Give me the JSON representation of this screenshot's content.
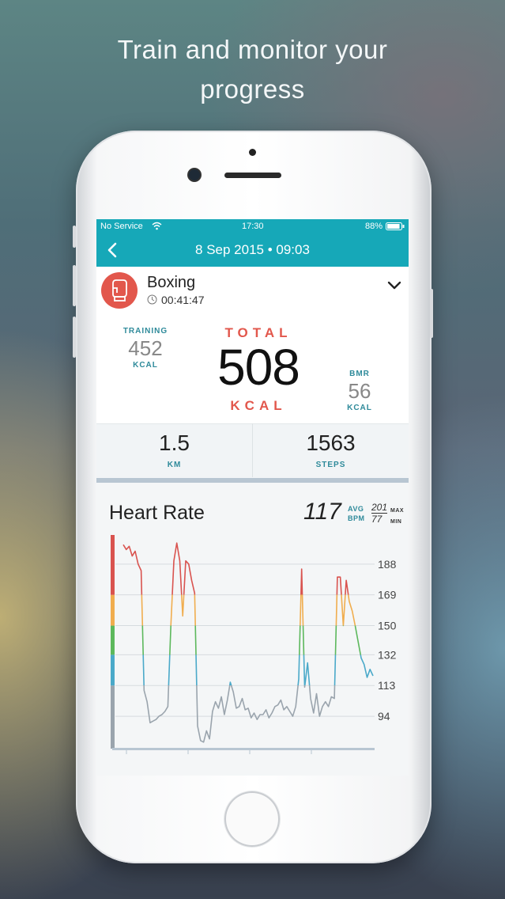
{
  "headline": {
    "line1": "Train and monitor your",
    "line2": "progress"
  },
  "status_bar": {
    "carrier": "No Service",
    "time": "17:30",
    "battery": "88%"
  },
  "nav": {
    "title": "8 Sep 2015 • 09:03",
    "back_icon": "chevron-left-icon"
  },
  "activity": {
    "name": "Boxing",
    "duration": "00:41:47",
    "icon": "boxing-glove-icon",
    "color": "#e2574c"
  },
  "calories": {
    "training_label": "TRAINING",
    "training_value": "452",
    "training_unit": "KCAL",
    "total_label": "TOTAL",
    "total_value": "508",
    "total_unit": "KCAL",
    "bmr_label": "BMR",
    "bmr_value": "56",
    "bmr_unit": "KCAL"
  },
  "stats": {
    "distance_value": "1.5",
    "distance_label": "KM",
    "steps_value": "1563",
    "steps_label": "STEPS"
  },
  "heart_rate": {
    "title": "Heart Rate",
    "avg_value": "117",
    "avg_label_1": "AVG",
    "avg_label_2": "BPM",
    "max_value": "201",
    "max_label": "MAX",
    "min_value": "77",
    "min_label": "MIN"
  },
  "chart_data": {
    "type": "line",
    "yticks": [
      94,
      113,
      132,
      150,
      169,
      188
    ],
    "ylim": [
      74,
      206
    ],
    "zone_colors": [
      "#9aa4ad",
      "#4aa9c9",
      "#5cb85c",
      "#f0ad4e",
      "#d9534f"
    ],
    "zone_bounds": [
      74,
      113,
      132,
      150,
      169,
      206
    ],
    "series": [
      {
        "x": [
          0,
          1,
          2,
          3,
          4,
          5,
          6,
          7,
          8,
          9,
          10,
          11,
          12,
          13,
          14,
          15,
          16,
          17,
          18,
          19,
          20,
          21,
          22,
          23,
          24,
          25,
          26,
          27,
          28,
          29,
          30,
          31,
          32,
          33,
          34,
          35,
          36,
          37,
          38,
          39,
          40,
          41,
          42,
          43,
          44,
          45,
          46,
          47,
          48,
          49,
          50,
          51,
          52,
          53,
          54,
          55,
          56,
          57,
          58,
          59,
          60,
          61,
          62,
          63,
          64,
          65,
          66,
          67,
          68,
          69,
          70,
          71,
          72,
          73,
          74,
          75,
          76,
          77,
          78,
          79,
          80,
          81,
          82,
          83,
          84
        ],
        "values": [
          200,
          197,
          199,
          193,
          196,
          188,
          184,
          110,
          103,
          90,
          91,
          92,
          94,
          95,
          97,
          100,
          150,
          190,
          201,
          190,
          156,
          190,
          188,
          178,
          170,
          88,
          79,
          78,
          85,
          80,
          97,
          103,
          99,
          106,
          95,
          104,
          115,
          109,
          99,
          100,
          105,
          98,
          99,
          93,
          96,
          92,
          95,
          95,
          98,
          93,
          96,
          100,
          101,
          104,
          98,
          100,
          97,
          94,
          100,
          117,
          185,
          112,
          127,
          105,
          96,
          108,
          94,
          100,
          103,
          100,
          106,
          105,
          180,
          180,
          150,
          178,
          165,
          159,
          150,
          140,
          130,
          126,
          118,
          123,
          119
        ]
      }
    ]
  }
}
